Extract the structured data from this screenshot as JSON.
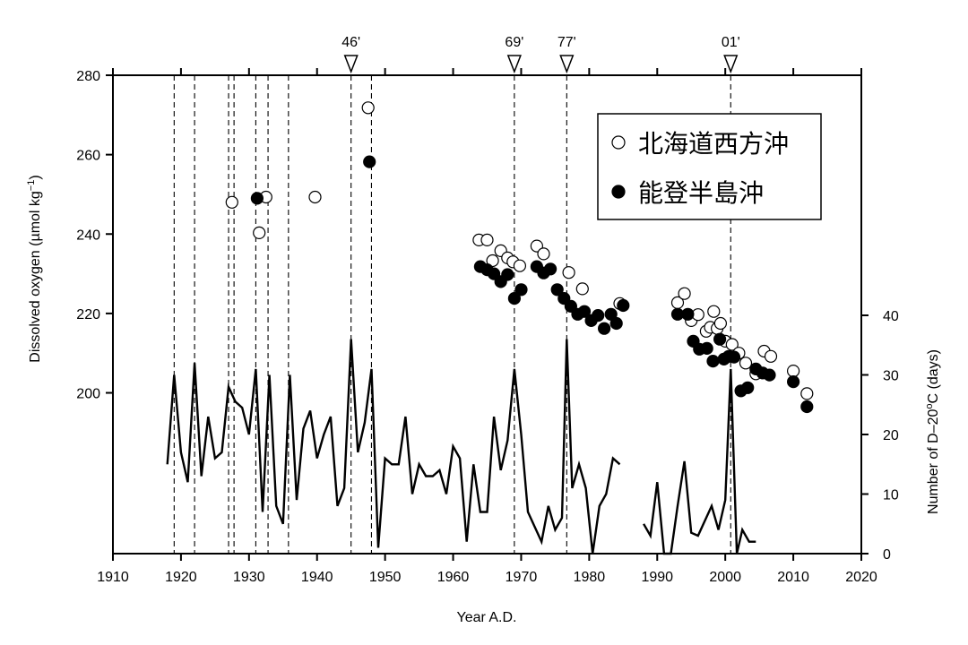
{
  "chart_data": {
    "type": "scatter",
    "title": "",
    "xlabel": "Year A.D.",
    "ylabel_left_prefix": "Dissolved oxygen (µmol kg",
    "ylabel_left_sup": "−1",
    "ylabel_left_suffix": ")",
    "ylabel_right_prefix": "Number of D–20",
    "ylabel_right_sup": "o",
    "ylabel_right_suffix": "C (days)",
    "xlim": [
      1910,
      2020
    ],
    "ylim_left": [
      159.5,
      280
    ],
    "ylim_right": [
      0,
      40
    ],
    "x_ticks": [
      1910,
      1920,
      1930,
      1940,
      1950,
      1960,
      1970,
      1980,
      1990,
      2000,
      2010,
      2020
    ],
    "y_ticks_left": [
      200,
      220,
      240,
      260,
      280
    ],
    "y_ticks_right": [
      0,
      10,
      20,
      30,
      40
    ],
    "top_markers": [
      {
        "x": 1945,
        "label": "46'"
      },
      {
        "x": 1969,
        "label": "69'"
      },
      {
        "x": 1976.7,
        "label": "77'"
      },
      {
        "x": 2000.8,
        "label": "01'"
      }
    ],
    "dashed_lines_x": [
      1919,
      1922,
      1927,
      1927.8,
      1931,
      1932.8,
      1935.8,
      1945,
      1948,
      1969,
      1976.7,
      2000.8
    ],
    "legend": {
      "position": "top-right",
      "entries": [
        {
          "marker": "open",
          "label": "北海道西方沖"
        },
        {
          "marker": "filled",
          "label": "能登半島沖"
        }
      ]
    },
    "series": [
      {
        "marker": "open",
        "axis": "left",
        "points": [
          [
            1927.5,
            248
          ],
          [
            1931.5,
            240.3
          ],
          [
            1932.5,
            249.3
          ],
          [
            1939.7,
            249.3
          ],
          [
            1947.5,
            271.8
          ],
          [
            1963.8,
            238.5
          ],
          [
            1965,
            238.5
          ],
          [
            1965.8,
            233.3
          ],
          [
            1967,
            235.8
          ],
          [
            1968,
            234
          ],
          [
            1968.8,
            233
          ],
          [
            1969.8,
            232
          ],
          [
            1972.3,
            237
          ],
          [
            1973.3,
            235
          ],
          [
            1977,
            230.3
          ],
          [
            1979,
            226.2
          ],
          [
            1984.5,
            222.5
          ],
          [
            1993,
            222.7
          ],
          [
            1994,
            225
          ],
          [
            1995,
            218.2
          ],
          [
            1996,
            219.7
          ],
          [
            1997.2,
            215.5
          ],
          [
            1997.8,
            216.5
          ],
          [
            1998.3,
            220.5
          ],
          [
            1998.8,
            216.2
          ],
          [
            1999.3,
            217.5
          ],
          [
            2000,
            213
          ],
          [
            2001,
            212.2
          ],
          [
            2002,
            210
          ],
          [
            2003,
            207.5
          ],
          [
            2004.5,
            204.8
          ],
          [
            2005.7,
            210.5
          ],
          [
            2006.7,
            209.2
          ],
          [
            2010,
            205.5
          ],
          [
            2012,
            199.8
          ]
        ]
      },
      {
        "marker": "filled",
        "axis": "left",
        "points": [
          [
            1931.2,
            249
          ],
          [
            1947.7,
            258.2
          ],
          [
            1964,
            231.8
          ],
          [
            1965,
            231
          ],
          [
            1966,
            230
          ],
          [
            1967,
            228
          ],
          [
            1968,
            229.8
          ],
          [
            1969,
            223.8
          ],
          [
            1970,
            226
          ],
          [
            1972.3,
            231.8
          ],
          [
            1973.3,
            230.2
          ],
          [
            1974.3,
            231.2
          ],
          [
            1975.3,
            226
          ],
          [
            1976.3,
            223.8
          ],
          [
            1977.3,
            221.8
          ],
          [
            1978.3,
            219.8
          ],
          [
            1979.3,
            220.5
          ],
          [
            1980.3,
            218.2
          ],
          [
            1981.3,
            219.5
          ],
          [
            1982.2,
            216.2
          ],
          [
            1983.2,
            219.8
          ],
          [
            1984,
            217.5
          ],
          [
            1985,
            222
          ],
          [
            1993,
            219.8
          ],
          [
            1994.5,
            219.8
          ],
          [
            1995.3,
            213
          ],
          [
            1996.2,
            211
          ],
          [
            1997.3,
            211.2
          ],
          [
            1998.2,
            208
          ],
          [
            1999.2,
            213.5
          ],
          [
            1999.8,
            208.5
          ],
          [
            2000.5,
            209.2
          ],
          [
            2001.3,
            209
          ],
          [
            2002.3,
            200.5
          ],
          [
            2003.3,
            201.3
          ],
          [
            2004.5,
            206
          ],
          [
            2005.5,
            205
          ],
          [
            2006.5,
            204.5
          ],
          [
            2010,
            202.8
          ],
          [
            2012,
            196.5
          ]
        ]
      },
      {
        "type": "line",
        "axis": "right",
        "segments": [
          [
            [
              1918,
              15
            ],
            [
              1919,
              30
            ],
            [
              1920,
              17
            ],
            [
              1921,
              12
            ],
            [
              1922,
              32
            ],
            [
              1923,
              13
            ],
            [
              1924,
              23
            ],
            [
              1925,
              16
            ],
            [
              1926,
              17
            ],
            [
              1927,
              28
            ],
            [
              1928,
              25.5
            ],
            [
              1929,
              24.5
            ],
            [
              1930,
              20
            ],
            [
              1931,
              31
            ],
            [
              1932,
              7
            ],
            [
              1933,
              30
            ],
            [
              1934,
              8
            ],
            [
              1935,
              5
            ],
            [
              1936,
              30
            ],
            [
              1937,
              9
            ],
            [
              1938,
              21
            ],
            [
              1939,
              24
            ],
            [
              1940,
              16
            ],
            [
              1941,
              20
            ],
            [
              1942,
              23
            ],
            [
              1943,
              8
            ],
            [
              1944,
              11
            ],
            [
              1945,
              36
            ],
            [
              1946,
              17
            ],
            [
              1947,
              22
            ],
            [
              1948,
              31
            ],
            [
              1949,
              1
            ],
            [
              1950,
              16
            ],
            [
              1951,
              15
            ],
            [
              1952,
              15
            ],
            [
              1953,
              23
            ],
            [
              1954,
              10
            ],
            [
              1955,
              15
            ],
            [
              1956,
              13
            ],
            [
              1957,
              13
            ],
            [
              1958,
              14
            ],
            [
              1959,
              10
            ],
            [
              1960,
              18
            ],
            [
              1961,
              16
            ],
            [
              1962,
              2
            ],
            [
              1963,
              15
            ],
            [
              1964,
              7
            ],
            [
              1965,
              7
            ],
            [
              1966,
              23
            ],
            [
              1967,
              14
            ],
            [
              1968,
              19
            ],
            [
              1969,
              31
            ],
            [
              1970,
              20
            ],
            [
              1971,
              7
            ],
            [
              1972,
              4.5
            ],
            [
              1973,
              2
            ],
            [
              1974,
              8
            ],
            [
              1975,
              4
            ],
            [
              1976,
              6
            ],
            [
              1976.7,
              36
            ],
            [
              1977.5,
              11
            ],
            [
              1978.5,
              15
            ],
            [
              1979.5,
              11
            ],
            [
              1980.5,
              0
            ],
            [
              1981.5,
              8
            ],
            [
              1982.5,
              10
            ],
            [
              1983.5,
              16
            ],
            [
              1984.5,
              15
            ]
          ],
          [
            [
              1988,
              5
            ],
            [
              1989,
              3
            ],
            [
              1990,
              12
            ],
            [
              1991,
              0
            ],
            [
              1992,
              0
            ],
            [
              1993,
              8
            ],
            [
              1994,
              15.5
            ],
            [
              1995,
              3.5
            ],
            [
              1996,
              3
            ],
            [
              1997,
              5.5
            ],
            [
              1998,
              8
            ],
            [
              1999,
              4
            ],
            [
              2000,
              9
            ],
            [
              2000.8,
              31
            ],
            [
              2001.7,
              0
            ],
            [
              2002.5,
              4
            ],
            [
              2003.5,
              2
            ],
            [
              2004.5,
              2
            ]
          ]
        ]
      }
    ]
  }
}
